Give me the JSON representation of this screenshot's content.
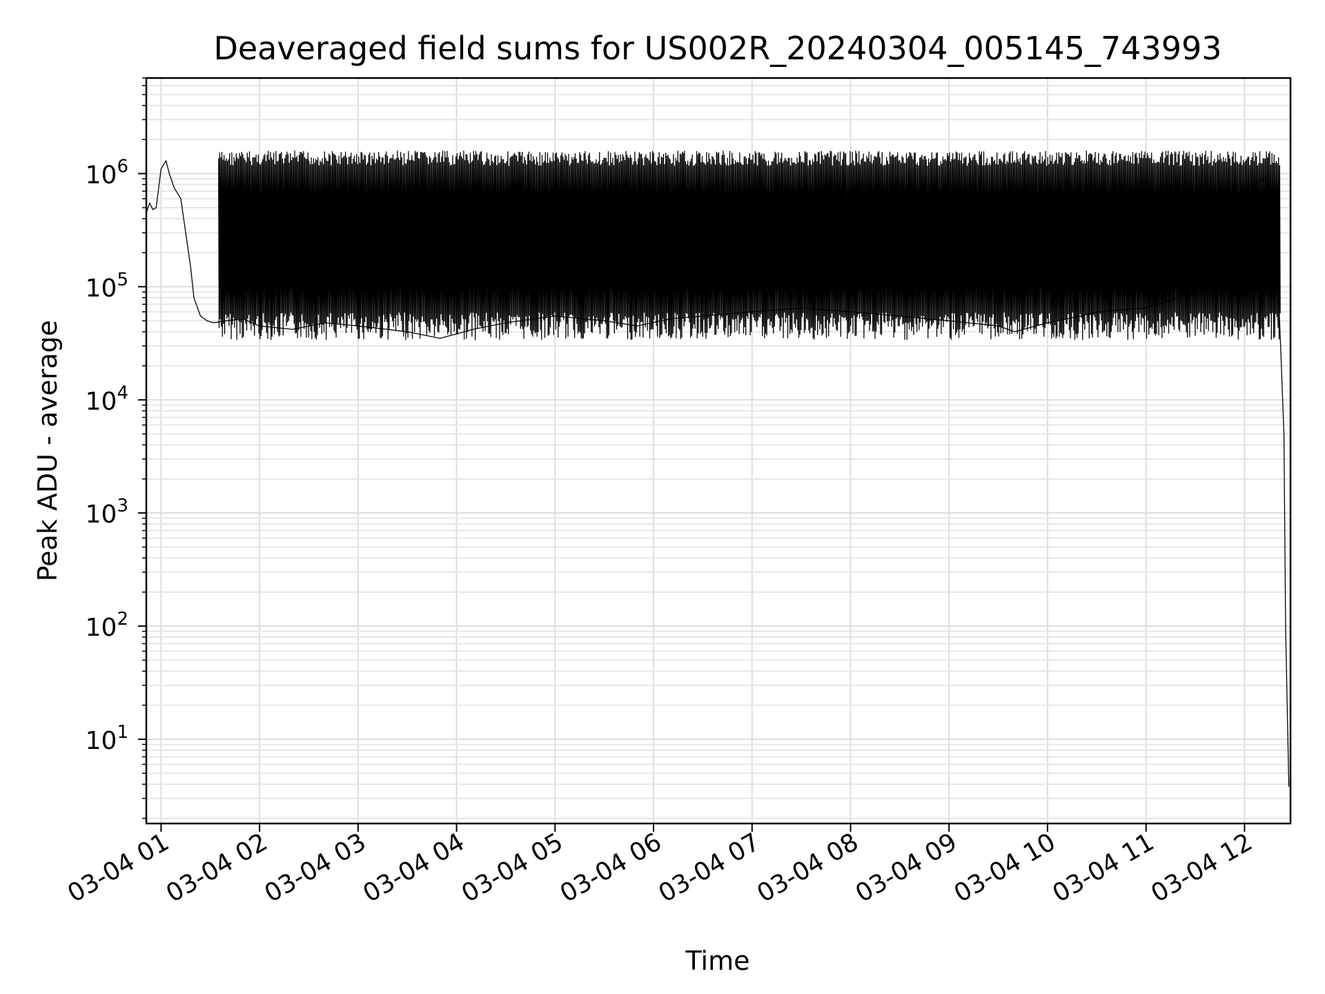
{
  "chart_data": {
    "type": "line",
    "title": "Deaveraged field sums for US002R_20240304_005145_743993",
    "xlabel": "Time",
    "ylabel": "Peak ADU - average",
    "yscale": "log",
    "grid": true,
    "line_color": "#000000",
    "xlim": [
      "2024-03-04 00:51",
      "2024-03-04 12:28"
    ],
    "ylim": [
      1.8,
      7000000
    ],
    "x_ticks": [
      {
        "label": "03-04 01",
        "value": "2024-03-04 01:00"
      },
      {
        "label": "03-04 02",
        "value": "2024-03-04 02:00"
      },
      {
        "label": "03-04 03",
        "value": "2024-03-04 03:00"
      },
      {
        "label": "03-04 04",
        "value": "2024-03-04 04:00"
      },
      {
        "label": "03-04 05",
        "value": "2024-03-04 05:00"
      },
      {
        "label": "03-04 06",
        "value": "2024-03-04 06:00"
      },
      {
        "label": "03-04 07",
        "value": "2024-03-04 07:00"
      },
      {
        "label": "03-04 08",
        "value": "2024-03-04 08:00"
      },
      {
        "label": "03-04 09",
        "value": "2024-03-04 09:00"
      },
      {
        "label": "03-04 10",
        "value": "2024-03-04 10:00"
      },
      {
        "label": "03-04 11",
        "value": "2024-03-04 11:00"
      },
      {
        "label": "03-04 12",
        "value": "2024-03-04 12:00"
      }
    ],
    "y_ticks": [
      {
        "base": "10",
        "exp": "1",
        "value": 10
      },
      {
        "base": "10",
        "exp": "2",
        "value": 100
      },
      {
        "base": "10",
        "exp": "3",
        "value": 1000
      },
      {
        "base": "10",
        "exp": "4",
        "value": 10000
      },
      {
        "base": "10",
        "exp": "5",
        "value": 100000
      },
      {
        "base": "10",
        "exp": "6",
        "value": 1000000
      }
    ],
    "series": [
      {
        "x": [
          "2024-03-04 00:51",
          "2024-03-04 00:53",
          "2024-03-04 00:55",
          "2024-03-04 00:57",
          "2024-03-04 01:00",
          "2024-03-04 01:03",
          "2024-03-04 01:05",
          "2024-03-04 01:08",
          "2024-03-04 01:12",
          "2024-03-04 01:15",
          "2024-03-04 01:18",
          "2024-03-04 01:20",
          "2024-03-04 01:24",
          "2024-03-04 01:28",
          "2024-03-04 01:32",
          "2024-03-04 01:40",
          "2024-03-04 01:50",
          "2024-03-04 02:00",
          "2024-03-04 02:20",
          "2024-03-04 02:40",
          "2024-03-04 03:00",
          "2024-03-04 03:30",
          "2024-03-04 03:50",
          "2024-03-04 04:10",
          "2024-03-04 04:30",
          "2024-03-04 05:00",
          "2024-03-04 05:30",
          "2024-03-04 05:50",
          "2024-03-04 06:10",
          "2024-03-04 06:30",
          "2024-03-04 07:00",
          "2024-03-04 07:30",
          "2024-03-04 08:00",
          "2024-03-04 08:30",
          "2024-03-04 09:00",
          "2024-03-04 09:30",
          "2024-03-04 09:40",
          "2024-03-04 10:00",
          "2024-03-04 10:20",
          "2024-03-04 10:30",
          "2024-03-04 11:00",
          "2024-03-04 11:30",
          "2024-03-04 11:45",
          "2024-03-04 12:00",
          "2024-03-04 12:10",
          "2024-03-04 12:15",
          "2024-03-04 12:18",
          "2024-03-04 12:20",
          "2024-03-04 12:22",
          "2024-03-04 12:24",
          "2024-03-04 12:25",
          "2024-03-04 12:26",
          "2024-03-04 12:27"
        ],
        "y": [
          450000,
          550000,
          480000,
          500000,
          1100000,
          1300000,
          1000000,
          750000,
          600000,
          300000,
          150000,
          80000,
          55000,
          50000,
          48000,
          50000,
          52000,
          45000,
          42000,
          48000,
          45000,
          40000,
          35000,
          42000,
          48000,
          55000,
          50000,
          45000,
          52000,
          55000,
          60000,
          65000,
          60000,
          55000,
          50000,
          45000,
          40000,
          48000,
          55000,
          60000,
          65000,
          90000,
          250000,
          600000,
          900000,
          800000,
          500000,
          150000,
          30000,
          5000,
          100,
          20,
          3.8
        ]
      }
    ],
    "band": {
      "upper_envelope": 1400000,
      "lower_envelope": 45000,
      "description_start": "2024-03-04 01:35",
      "description_end": "2024-03-04 12:22"
    }
  }
}
